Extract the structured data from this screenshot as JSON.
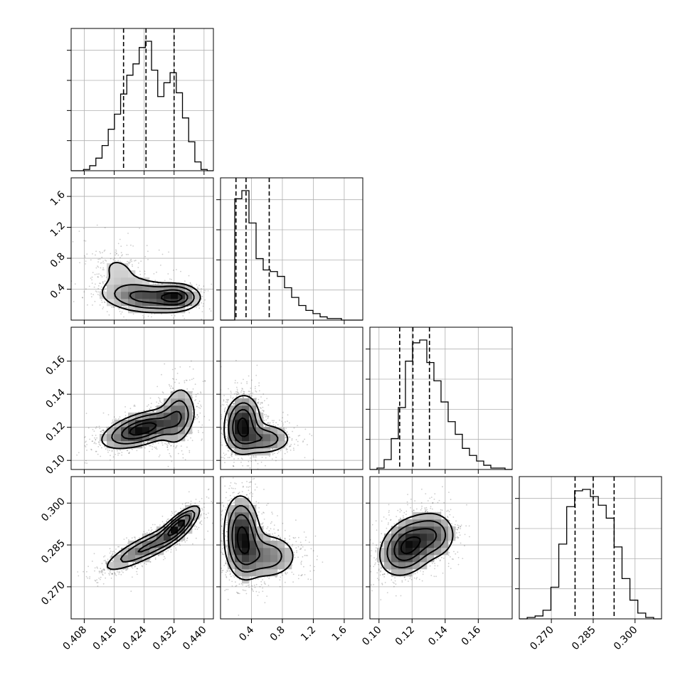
{
  "chart_data": {
    "type": "corner",
    "title": "",
    "parameters": [
      {
        "range": [
          0.4045,
          0.4425
        ],
        "ticks": [
          0.408,
          0.416,
          0.424,
          0.432,
          0.44
        ],
        "tick_labels": [
          "0.408",
          "0.416",
          "0.424",
          "0.432",
          "0.440"
        ],
        "quantiles": [
          0.4185,
          0.4245,
          0.432
        ],
        "hist": [
          0,
          0,
          1,
          4,
          10,
          20,
          33,
          45,
          61,
          76,
          85,
          98,
          103,
          80,
          59,
          70,
          78,
          62,
          42,
          23,
          7,
          1,
          0
        ],
        "hist_edges": [
          0.4045,
          0.4425
        ]
      },
      {
        "range": [
          0.0,
          1.84
        ],
        "ticks": [
          0.4,
          0.8,
          1.2,
          1.6
        ],
        "tick_labels": [
          "0.4",
          "0.8",
          "1.2",
          "1.6"
        ],
        "quantiles": [
          0.2,
          0.33,
          0.63
        ],
        "hist": [
          0,
          0,
          75,
          80,
          60,
          38,
          31,
          30,
          27,
          20,
          14,
          9,
          6,
          4,
          2,
          1,
          1,
          0,
          0,
          0
        ],
        "hist_edges": [
          0.0,
          1.84
        ]
      },
      {
        "range": [
          0.0945,
          0.1805
        ],
        "ticks": [
          0.1,
          0.12,
          0.14,
          0.16
        ],
        "tick_labels": [
          "0.10",
          "0.12",
          "0.14",
          "0.16"
        ],
        "quantiles": [
          0.1125,
          0.1205,
          0.1305
        ],
        "hist": [
          0,
          1,
          7,
          22,
          44,
          77,
          90,
          92,
          76,
          63,
          48,
          34,
          25,
          15,
          10,
          6,
          3,
          1,
          1,
          0
        ],
        "hist_edges": [
          0.0945,
          0.1805
        ]
      },
      {
        "range": [
          0.2585,
          0.3095
        ],
        "ticks": [
          0.27,
          0.285,
          0.3
        ],
        "tick_labels": [
          "0.270",
          "0.285",
          "0.300"
        ],
        "quantiles": [
          0.2785,
          0.285,
          0.2925
        ],
        "hist": [
          0,
          1,
          2,
          6,
          22,
          52,
          78,
          89,
          90,
          85,
          79,
          70,
          50,
          28,
          13,
          4,
          1,
          0
        ],
        "hist_edges": [
          0.2585,
          0.3095
        ]
      }
    ],
    "panels": [
      {
        "row": 1,
        "col": 0,
        "modes": [
          {
            "x": 0.4242,
            "y": 0.3,
            "sx": 0.0055,
            "sy": 0.1,
            "rho": -0.2,
            "w": 0.55
          },
          {
            "x": 0.4325,
            "y": 0.3,
            "sx": 0.003,
            "sy": 0.08,
            "rho": 0.0,
            "w": 0.3
          },
          {
            "x": 0.4175,
            "y": 0.62,
            "sx": 0.0045,
            "sy": 0.2,
            "rho": -0.3,
            "w": 0.15
          }
        ]
      },
      {
        "row": 2,
        "col": 0,
        "modes": [
          {
            "x": 0.4235,
            "y": 0.119,
            "sx": 0.0055,
            "sy": 0.006,
            "rho": 0.55,
            "w": 0.7
          },
          {
            "x": 0.433,
            "y": 0.127,
            "sx": 0.0025,
            "sy": 0.01,
            "rho": 0.2,
            "w": 0.3
          }
        ]
      },
      {
        "row": 2,
        "col": 1,
        "modes": [
          {
            "x": 0.28,
            "y": 0.122,
            "sx": 0.12,
            "sy": 0.009,
            "rho": 0.1,
            "w": 0.65
          },
          {
            "x": 0.55,
            "y": 0.113,
            "sx": 0.2,
            "sy": 0.005,
            "rho": 0.0,
            "w": 0.35
          }
        ]
      },
      {
        "row": 3,
        "col": 0,
        "modes": [
          {
            "x": 0.4245,
            "y": 0.284,
            "sx": 0.006,
            "sy": 0.0045,
            "rho": 0.85,
            "w": 0.6
          },
          {
            "x": 0.4332,
            "y": 0.292,
            "sx": 0.0028,
            "sy": 0.0035,
            "rho": 0.8,
            "w": 0.4
          }
        ]
      },
      {
        "row": 3,
        "col": 1,
        "modes": [
          {
            "x": 0.28,
            "y": 0.288,
            "sx": 0.12,
            "sy": 0.0075,
            "rho": -0.1,
            "w": 0.65
          },
          {
            "x": 0.6,
            "y": 0.281,
            "sx": 0.22,
            "sy": 0.0045,
            "rho": 0.0,
            "w": 0.35
          }
        ]
      },
      {
        "row": 3,
        "col": 2,
        "modes": [
          {
            "x": 0.1175,
            "y": 0.2845,
            "sx": 0.009,
            "sy": 0.0055,
            "rho": 0.3,
            "w": 0.75
          },
          {
            "x": 0.134,
            "y": 0.2885,
            "sx": 0.007,
            "sy": 0.0045,
            "rho": 0.0,
            "w": 0.25
          }
        ]
      }
    ],
    "grid": true
  }
}
